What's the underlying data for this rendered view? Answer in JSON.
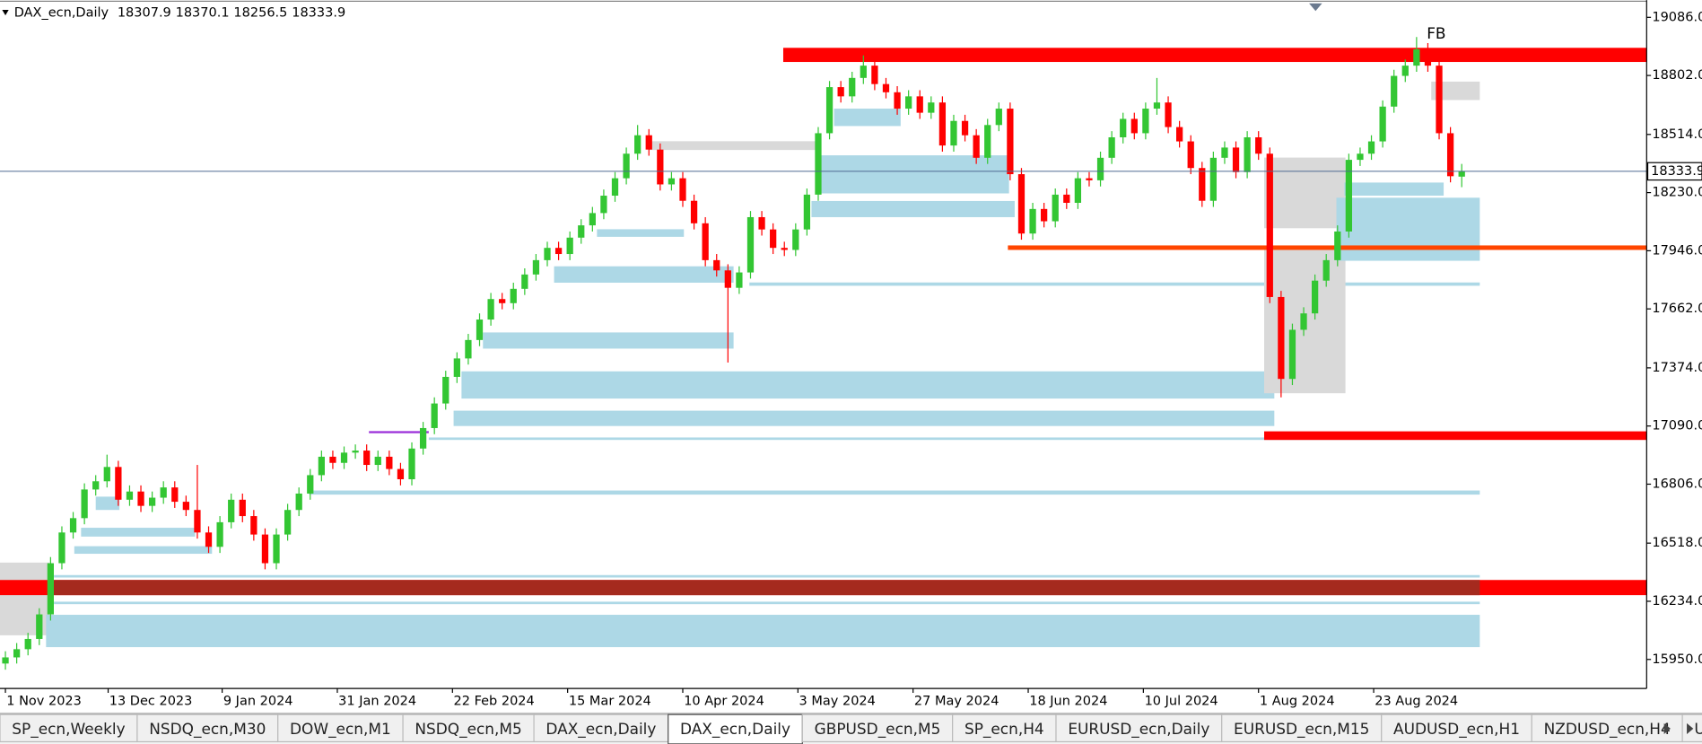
{
  "chart_data": {
    "type": "candlestick",
    "symbol": "DAX_ecn,Daily",
    "candles": [
      [
        15930,
        15990,
        15900,
        15960
      ],
      [
        15960,
        16030,
        15930,
        16000
      ],
      [
        16000,
        16080,
        15970,
        16050
      ],
      [
        16050,
        16200,
        16020,
        16170
      ],
      [
        16170,
        16450,
        16140,
        16420
      ],
      [
        16420,
        16600,
        16390,
        16570
      ],
      [
        16570,
        16670,
        16540,
        16640
      ],
      [
        16640,
        16810,
        16610,
        16780
      ],
      [
        16780,
        16850,
        16750,
        16820
      ],
      [
        16820,
        16950,
        16790,
        16890
      ],
      [
        16890,
        16920,
        16700,
        16730
      ],
      [
        16730,
        16800,
        16700,
        16770
      ],
      [
        16770,
        16800,
        16670,
        16700
      ],
      [
        16700,
        16770,
        16670,
        16740
      ],
      [
        16740,
        16820,
        16710,
        16790
      ],
      [
        16790,
        16820,
        16690,
        16720
      ],
      [
        16720,
        16750,
        16650,
        16680
      ],
      [
        16680,
        16900,
        16540,
        16570
      ],
      [
        16570,
        16600,
        16470,
        16500
      ],
      [
        16500,
        16650,
        16470,
        16620
      ],
      [
        16620,
        16760,
        16590,
        16730
      ],
      [
        16730,
        16760,
        16620,
        16650
      ],
      [
        16650,
        16680,
        16530,
        16560
      ],
      [
        16560,
        16590,
        16390,
        16420
      ],
      [
        16420,
        16590,
        16390,
        16560
      ],
      [
        16560,
        16710,
        16530,
        16680
      ],
      [
        16680,
        16790,
        16650,
        16760
      ],
      [
        16760,
        16880,
        16730,
        16850
      ],
      [
        16850,
        16970,
        16820,
        16940
      ],
      [
        16940,
        16970,
        16880,
        16910
      ],
      [
        16910,
        16990,
        16880,
        16960
      ],
      [
        16960,
        17000,
        16930,
        16970
      ],
      [
        16970,
        17000,
        16870,
        16900
      ],
      [
        16900,
        16970,
        16870,
        16940
      ],
      [
        16940,
        16970,
        16850,
        16880
      ],
      [
        16880,
        16910,
        16800,
        16830
      ],
      [
        16830,
        17010,
        16800,
        16980
      ],
      [
        16980,
        17110,
        16950,
        17080
      ],
      [
        17080,
        17230,
        17050,
        17200
      ],
      [
        17200,
        17360,
        17170,
        17330
      ],
      [
        17330,
        17450,
        17300,
        17420
      ],
      [
        17420,
        17540,
        17390,
        17510
      ],
      [
        17510,
        17640,
        17480,
        17610
      ],
      [
        17610,
        17740,
        17580,
        17710
      ],
      [
        17710,
        17740,
        17660,
        17690
      ],
      [
        17690,
        17790,
        17660,
        17760
      ],
      [
        17760,
        17860,
        17730,
        17830
      ],
      [
        17830,
        17930,
        17800,
        17900
      ],
      [
        17900,
        17990,
        17870,
        17960
      ],
      [
        17960,
        17990,
        17900,
        17930
      ],
      [
        17930,
        18040,
        17900,
        18010
      ],
      [
        18010,
        18100,
        17980,
        18070
      ],
      [
        18070,
        18160,
        18040,
        18130
      ],
      [
        18130,
        18245,
        18100,
        18215
      ],
      [
        18215,
        18330,
        18185,
        18300
      ],
      [
        18300,
        18450,
        18270,
        18420
      ],
      [
        18420,
        18560,
        18390,
        18510
      ],
      [
        18510,
        18540,
        18410,
        18440
      ],
      [
        18440,
        18470,
        18240,
        18270
      ],
      [
        18270,
        18330,
        18240,
        18300
      ],
      [
        18300,
        18330,
        18160,
        18190
      ],
      [
        18190,
        18220,
        18050,
        18080
      ],
      [
        18080,
        18110,
        17870,
        17900
      ],
      [
        17900,
        17930,
        17820,
        17850
      ],
      [
        17850,
        17880,
        17400,
        17765
      ],
      [
        17765,
        17870,
        17735,
        17840
      ],
      [
        17840,
        18140,
        17810,
        18110
      ],
      [
        18110,
        18140,
        18020,
        18050
      ],
      [
        18050,
        18080,
        17930,
        17960
      ],
      [
        17960,
        17990,
        17920,
        17950
      ],
      [
        17950,
        18080,
        17920,
        18050
      ],
      [
        18050,
        18250,
        18020,
        18220
      ],
      [
        18220,
        18550,
        18190,
        18520
      ],
      [
        18520,
        18775,
        18490,
        18745
      ],
      [
        18745,
        18775,
        18670,
        18700
      ],
      [
        18700,
        18820,
        18670,
        18790
      ],
      [
        18790,
        18900,
        18760,
        18850
      ],
      [
        18850,
        18880,
        18730,
        18760
      ],
      [
        18760,
        18790,
        18690,
        18720
      ],
      [
        18720,
        18750,
        18610,
        18640
      ],
      [
        18640,
        18730,
        18610,
        18700
      ],
      [
        18700,
        18730,
        18590,
        18620
      ],
      [
        18620,
        18700,
        18590,
        18670
      ],
      [
        18670,
        18700,
        18430,
        18460
      ],
      [
        18460,
        18610,
        18430,
        18580
      ],
      [
        18580,
        18610,
        18480,
        18510
      ],
      [
        18510,
        18540,
        18370,
        18400
      ],
      [
        18400,
        18590,
        18370,
        18560
      ],
      [
        18560,
        18670,
        18530,
        18640
      ],
      [
        18640,
        18670,
        18290,
        18320
      ],
      [
        18320,
        18350,
        18000,
        18030
      ],
      [
        18030,
        18180,
        18000,
        18150
      ],
      [
        18150,
        18180,
        18060,
        18090
      ],
      [
        18090,
        18250,
        18060,
        18220
      ],
      [
        18220,
        18250,
        18150,
        18180
      ],
      [
        18180,
        18330,
        18150,
        18300
      ],
      [
        18300,
        18330,
        18260,
        18290
      ],
      [
        18290,
        18430,
        18260,
        18400
      ],
      [
        18400,
        18530,
        18370,
        18500
      ],
      [
        18500,
        18620,
        18470,
        18590
      ],
      [
        18590,
        18620,
        18490,
        18520
      ],
      [
        18520,
        18670,
        18490,
        18640
      ],
      [
        18640,
        18790,
        18610,
        18670
      ],
      [
        18670,
        18700,
        18520,
        18550
      ],
      [
        18550,
        18580,
        18450,
        18480
      ],
      [
        18480,
        18510,
        18320,
        18350
      ],
      [
        18350,
        18380,
        18160,
        18190
      ],
      [
        18190,
        18430,
        18160,
        18400
      ],
      [
        18400,
        18480,
        18370,
        18450
      ],
      [
        18450,
        18480,
        18300,
        18330
      ],
      [
        18330,
        18530,
        18300,
        18500
      ],
      [
        18500,
        18530,
        18390,
        18420
      ],
      [
        18420,
        18450,
        17690,
        17720
      ],
      [
        17720,
        17750,
        17230,
        17320
      ],
      [
        17320,
        17590,
        17290,
        17560
      ],
      [
        17560,
        17670,
        17530,
        17640
      ],
      [
        17640,
        17830,
        17610,
        17800
      ],
      [
        17800,
        17930,
        17770,
        17900
      ],
      [
        17900,
        18070,
        17870,
        18040
      ],
      [
        18040,
        18420,
        18010,
        18390
      ],
      [
        18390,
        18450,
        18360,
        18420
      ],
      [
        18420,
        18510,
        18390,
        18480
      ],
      [
        18480,
        18680,
        18450,
        18650
      ],
      [
        18650,
        18830,
        18620,
        18800
      ],
      [
        18800,
        18880,
        18770,
        18850
      ],
      [
        18850,
        18990,
        18820,
        18930
      ],
      [
        18930,
        18960,
        18820,
        18850
      ],
      [
        18850,
        18880,
        18490,
        18520
      ],
      [
        18520,
        18550,
        18280,
        18310
      ],
      [
        18307.9,
        18370.1,
        18256.5,
        18333.9
      ]
    ],
    "bull_color": "#33c633",
    "bear_color": "#ff0000",
    "price_line_color": "#4f6a92",
    "ylim": [
      15808,
      19170
    ],
    "yticks": [
      {
        "value": 19086,
        "label": "19086.0"
      },
      {
        "value": 18802,
        "label": "18802.0"
      },
      {
        "value": 18514,
        "label": "18514.0"
      },
      {
        "value": 18230,
        "label": "18230.0"
      },
      {
        "value": 17946,
        "label": "17946.0"
      },
      {
        "value": 17662,
        "label": "17662.0"
      },
      {
        "value": 17374,
        "label": "17374.0"
      },
      {
        "value": 17090,
        "label": "17090.0"
      },
      {
        "value": 16806,
        "label": "16806.0"
      },
      {
        "value": 16518,
        "label": "16518.0"
      },
      {
        "value": 16234,
        "label": "16234.0"
      },
      {
        "value": 15950,
        "label": "15950.0"
      }
    ],
    "xlim": [
      -0.48,
      145.38
    ],
    "xticks": [
      {
        "value": 0,
        "label": "1 Nov 2023"
      },
      {
        "value": 9.1,
        "label": "13 Dec 2023"
      },
      {
        "value": 19.2,
        "label": "9 Jan 2024"
      },
      {
        "value": 29.4,
        "label": "31 Jan 2024"
      },
      {
        "value": 39.6,
        "label": "22 Feb 2024"
      },
      {
        "value": 49.8,
        "label": "15 Mar 2024"
      },
      {
        "value": 60,
        "label": "10 Apr 2024"
      },
      {
        "value": 70.2,
        "label": "3 May 2024"
      },
      {
        "value": 80.4,
        "label": "27 May 2024"
      },
      {
        "value": 90.6,
        "label": "18 Jun 2024"
      },
      {
        "value": 100.8,
        "label": "10 Jul 2024"
      },
      {
        "value": 111,
        "label": "1 Aug 2024"
      },
      {
        "value": 121.2,
        "label": "23 Aug 2024"
      }
    ],
    "zones": [
      {
        "from": -0.48,
        "to": 3.9,
        "low": 16068,
        "high": 16423,
        "color": "#d9d9d9"
      },
      {
        "from": 3.6,
        "to": 130.6,
        "low": 16010,
        "high": 16168,
        "color": "#add8e6"
      },
      {
        "from": -0.48,
        "to": 145.38,
        "low": 16264,
        "high": 16338,
        "color": "#ff0000"
      },
      {
        "from": 4.3,
        "to": 130.6,
        "low": 16264,
        "high": 16338,
        "color": "#a52a1e"
      },
      {
        "from": 4.3,
        "to": 130.6,
        "low": 16220,
        "high": 16232,
        "color": "#add8e6"
      },
      {
        "from": 4.3,
        "to": 130.6,
        "low": 16350,
        "high": 16362,
        "color": "#add8e6"
      },
      {
        "from": 6.1,
        "to": 18.3,
        "low": 16466,
        "high": 16503,
        "color": "#add8e6"
      },
      {
        "from": 6.7,
        "to": 16.8,
        "low": 16550,
        "high": 16593,
        "color": "#add8e6"
      },
      {
        "from": 8,
        "to": 10.1,
        "low": 16680,
        "high": 16745,
        "color": "#add8e6"
      },
      {
        "from": 26.9,
        "to": 130.6,
        "low": 16755,
        "high": 16775,
        "color": "#add8e6"
      },
      {
        "from": 32.2,
        "to": 37.5,
        "low": 17055,
        "high": 17065,
        "color": "#9b30d9"
      },
      {
        "from": 37.5,
        "to": 130.6,
        "low": 17022,
        "high": 17034,
        "color": "#add8e6"
      },
      {
        "from": 39.7,
        "to": 112.4,
        "low": 17090,
        "high": 17165,
        "color": "#add8e6"
      },
      {
        "from": 40.4,
        "to": 112.4,
        "low": 17224,
        "high": 17357,
        "color": "#add8e6"
      },
      {
        "from": 42.3,
        "to": 64.5,
        "low": 17468,
        "high": 17547,
        "color": "#add8e6"
      },
      {
        "from": 48.6,
        "to": 64.5,
        "low": 17790,
        "high": 17870,
        "color": "#add8e6"
      },
      {
        "from": 52.4,
        "to": 60.1,
        "low": 18014,
        "high": 18051,
        "color": "#add8e6"
      },
      {
        "from": 57,
        "to": 72.1,
        "low": 18438,
        "high": 18481,
        "color": "#d9d9d9"
      },
      {
        "from": 65.9,
        "to": 130.6,
        "low": 17775,
        "high": 17791,
        "color": "#add8e6"
      },
      {
        "from": 71.4,
        "to": 89.4,
        "low": 18110,
        "high": 18189,
        "color": "#add8e6"
      },
      {
        "from": 72.1,
        "to": 88.9,
        "low": 18226,
        "high": 18412,
        "color": "#add8e6"
      },
      {
        "from": 73.4,
        "to": 79.3,
        "low": 18555,
        "high": 18640,
        "color": "#add8e6"
      },
      {
        "from": 111.5,
        "to": 118.7,
        "low": 18056,
        "high": 18401,
        "color": "#d9d9d9"
      },
      {
        "from": 111.5,
        "to": 118.7,
        "low": 17250,
        "high": 17950,
        "color": "#d9d9d9"
      },
      {
        "from": 117.9,
        "to": 130.6,
        "low": 17897,
        "high": 18205,
        "color": "#add8e6"
      },
      {
        "from": 118.6,
        "to": 127.4,
        "low": 18215,
        "high": 18279,
        "color": "#add8e6"
      },
      {
        "from": 126.3,
        "to": 130.6,
        "low": 18682,
        "high": 18772,
        "color": "#d9d9d9"
      },
      {
        "from": 68.9,
        "to": 145.38,
        "low": 18868,
        "high": 18937,
        "color": "#ff0000"
      },
      {
        "from": 88.8,
        "to": 145.38,
        "low": 17950,
        "high": 17972,
        "color": "#ff4500"
      },
      {
        "from": 111.5,
        "to": 145.38,
        "low": 17022,
        "high": 17064,
        "color": "#ff0000"
      }
    ],
    "annotations": [
      {
        "text": "FB",
        "x": 125.9,
        "price": 19005
      }
    ]
  },
  "tabs": {
    "items": [
      "SP_ecn,Weekly",
      "NSDQ_ecn,M30",
      "DOW_ecn,M1",
      "NSDQ_ecn,M5",
      "DAX_ecn,Daily",
      "DAX_ecn,Daily",
      "GBPUSD_ecn,M5",
      "SP_ecn,H4",
      "EURUSD_ecn,Daily",
      "EURUSD_ecn,M15",
      "AUDUSD_ecn,H1",
      "NZDUSD_ecn,H4",
      "U"
    ],
    "active": 5
  }
}
